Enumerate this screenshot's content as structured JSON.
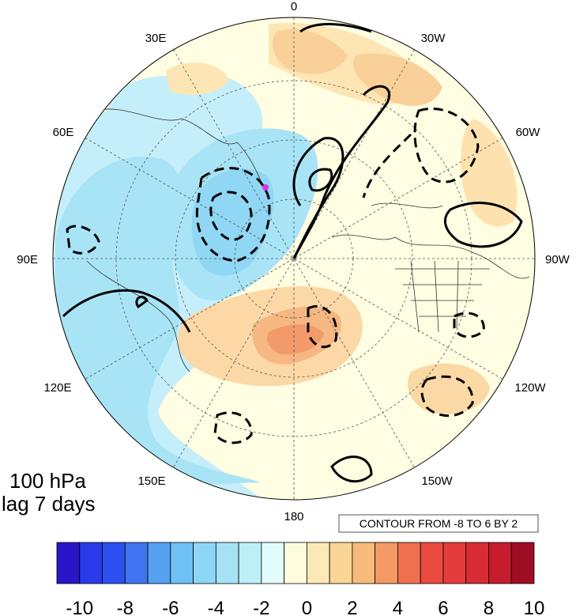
{
  "plot": {
    "level": "100 hPa",
    "lag": "lag 7 days",
    "contour_note": "CONTOUR FROM -8 TO 6 BY 2"
  },
  "longitude_labels": {
    "top": "0",
    "bottom": "180",
    "left": "90E",
    "right": "90W",
    "ul_30": "30E",
    "ul_60": "60E",
    "ur_30": "30W",
    "ur_60": "60W",
    "ll_120": "120E",
    "ll_150": "150E",
    "lr_120": "120W",
    "lr_150": "150W"
  },
  "colorbar": {
    "ticks": [
      "-10",
      "-8",
      "-6",
      "-4",
      "-2",
      "0",
      "2",
      "4",
      "6",
      "8",
      "10"
    ],
    "colors": [
      "#2a16c8",
      "#2a3ae8",
      "#2c50f0",
      "#3f73ef",
      "#56a0f2",
      "#6fc0f5",
      "#8ed6f7",
      "#a6e2f6",
      "#bdeff6",
      "#e2fbfc",
      "#fffcde",
      "#fde9b8",
      "#f9d596",
      "#f8bb7c",
      "#f59a64",
      "#ef704f",
      "#ea4a3e",
      "#e43c3c",
      "#d92b36",
      "#c61c2e",
      "#9e0d24"
    ]
  }
}
